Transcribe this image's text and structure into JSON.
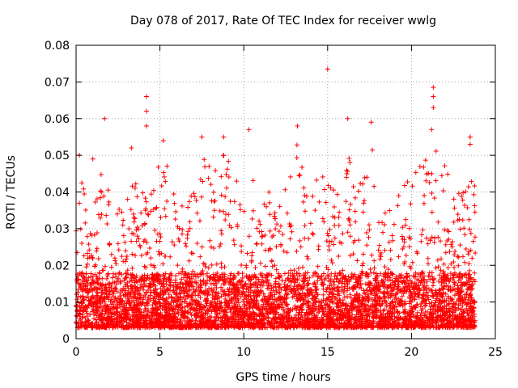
{
  "chart_data": {
    "type": "scatter",
    "title": "Day 078 of 2017, Rate Of TEC Index for receiver wwlg",
    "xlabel": "GPS time / hours",
    "ylabel": "ROTI / TECUs",
    "xlim": [
      0,
      25
    ],
    "ylim": [
      0,
      0.08
    ],
    "x_ticks": [
      0,
      5,
      10,
      15,
      20,
      25
    ],
    "x_tick_labels": [
      "0",
      "5",
      "10",
      "15",
      "20",
      "25"
    ],
    "y_ticks": [
      0,
      0.01,
      0.02,
      0.03,
      0.04,
      0.05,
      0.06,
      0.07,
      0.08
    ],
    "y_tick_labels": [
      "0",
      "0.01",
      "0.02",
      "0.03",
      "0.04",
      "0.05",
      "0.06",
      "0.07",
      "0.08"
    ],
    "grid": true,
    "marker": "+",
    "color": "#ff0000",
    "series": [
      {
        "name": "ROTI",
        "x_range": [
          0,
          23.8
        ],
        "baseline_min": 0.003,
        "notable_points": [
          {
            "x": 4.2,
            "y": 0.066
          },
          {
            "x": 4.2,
            "y": 0.062
          },
          {
            "x": 4.2,
            "y": 0.058
          },
          {
            "x": 1.7,
            "y": 0.06
          },
          {
            "x": 3.3,
            "y": 0.052
          },
          {
            "x": 5.2,
            "y": 0.054
          },
          {
            "x": 7.5,
            "y": 0.055
          },
          {
            "x": 8.8,
            "y": 0.055
          },
          {
            "x": 10.3,
            "y": 0.057
          },
          {
            "x": 13.2,
            "y": 0.058
          },
          {
            "x": 15.0,
            "y": 0.0735
          },
          {
            "x": 16.2,
            "y": 0.06
          },
          {
            "x": 17.6,
            "y": 0.059
          },
          {
            "x": 21.3,
            "y": 0.0685
          },
          {
            "x": 21.3,
            "y": 0.066
          },
          {
            "x": 21.3,
            "y": 0.063
          },
          {
            "x": 21.2,
            "y": 0.057
          },
          {
            "x": 23.5,
            "y": 0.055
          },
          {
            "x": 23.5,
            "y": 0.053
          },
          {
            "x": 0.2,
            "y": 0.05
          },
          {
            "x": 1.0,
            "y": 0.049
          }
        ],
        "activity_envelope": [
          {
            "x": 0.0,
            "y": 0.031
          },
          {
            "x": 0.3,
            "y": 0.047
          },
          {
            "x": 0.8,
            "y": 0.03
          },
          {
            "x": 1.5,
            "y": 0.045
          },
          {
            "x": 2.5,
            "y": 0.035
          },
          {
            "x": 3.3,
            "y": 0.044
          },
          {
            "x": 4.0,
            "y": 0.04
          },
          {
            "x": 4.8,
            "y": 0.048
          },
          {
            "x": 5.3,
            "y": 0.052
          },
          {
            "x": 6.0,
            "y": 0.036
          },
          {
            "x": 7.0,
            "y": 0.04
          },
          {
            "x": 7.6,
            "y": 0.052
          },
          {
            "x": 8.3,
            "y": 0.046
          },
          {
            "x": 8.9,
            "y": 0.054
          },
          {
            "x": 9.5,
            "y": 0.045
          },
          {
            "x": 10.2,
            "y": 0.048
          },
          {
            "x": 10.8,
            "y": 0.04
          },
          {
            "x": 11.6,
            "y": 0.04
          },
          {
            "x": 12.5,
            "y": 0.045
          },
          {
            "x": 13.2,
            "y": 0.056
          },
          {
            "x": 14.0,
            "y": 0.042
          },
          {
            "x": 14.8,
            "y": 0.046
          },
          {
            "x": 15.5,
            "y": 0.04
          },
          {
            "x": 16.3,
            "y": 0.05
          },
          {
            "x": 17.0,
            "y": 0.042
          },
          {
            "x": 17.7,
            "y": 0.052
          },
          {
            "x": 18.5,
            "y": 0.036
          },
          {
            "x": 19.3,
            "y": 0.04
          },
          {
            "x": 20.0,
            "y": 0.045
          },
          {
            "x": 20.6,
            "y": 0.049
          },
          {
            "x": 21.3,
            "y": 0.054
          },
          {
            "x": 22.0,
            "y": 0.049
          },
          {
            "x": 22.6,
            "y": 0.043
          },
          {
            "x": 23.2,
            "y": 0.04
          },
          {
            "x": 23.8,
            "y": 0.046
          }
        ]
      }
    ]
  }
}
